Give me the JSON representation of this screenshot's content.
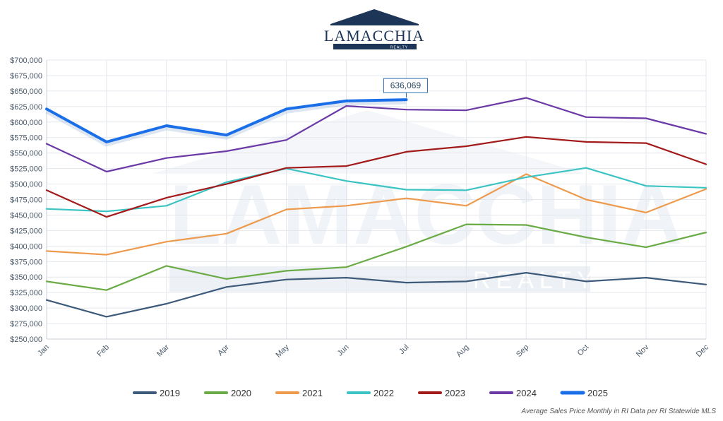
{
  "logo": {
    "name": "LAMACCHIA",
    "sub": "REALTY"
  },
  "watermark": {
    "name": "LAMACCHIA",
    "sub": "REALTY"
  },
  "source_note": "Average Sales Price Monthly in RI Data per RI Statewide MLS",
  "callout": {
    "label": "636,069",
    "series": "2025",
    "month": "Jul"
  },
  "colors": {
    "2019": "#3d5a7a",
    "2020": "#6aab45",
    "2021": "#ee9a4d",
    "2022": "#3cc4c4",
    "2023": "#a31a1a",
    "2024": "#6b3aa6",
    "2025": "#1a6fe8"
  },
  "chart_data": {
    "type": "line",
    "title": "",
    "xlabel": "",
    "ylabel": "",
    "categories": [
      "Jan",
      "Feb",
      "Mar",
      "Apr",
      "May",
      "Jun",
      "Jul",
      "Aug",
      "Sep",
      "Oct",
      "Nov",
      "Dec"
    ],
    "ylim": [
      250000,
      700000
    ],
    "yticks": [
      "$250,000",
      "$275,000",
      "$300,000",
      "$325,000",
      "$350,000",
      "$375,000",
      "$400,000",
      "$425,000",
      "$450,000",
      "$475,000",
      "$500,000",
      "$525,000",
      "$550,000",
      "$575,000",
      "$600,000",
      "$625,000",
      "$650,000",
      "$675,000",
      "$700,000"
    ],
    "ytick_values": [
      250000,
      275000,
      300000,
      325000,
      350000,
      375000,
      400000,
      425000,
      450000,
      475000,
      500000,
      525000,
      550000,
      575000,
      600000,
      625000,
      650000,
      675000,
      700000
    ],
    "grid": true,
    "legend_position": "bottom",
    "series": [
      {
        "name": "2019",
        "values": [
          313000,
          286000,
          307000,
          334000,
          346000,
          349000,
          341000,
          343000,
          357000,
          343000,
          349000,
          338000
        ]
      },
      {
        "name": "2020",
        "values": [
          343000,
          329000,
          368000,
          347000,
          360000,
          366000,
          399000,
          435000,
          434000,
          414000,
          398000,
          422000
        ]
      },
      {
        "name": "2021",
        "values": [
          392000,
          386000,
          407000,
          420000,
          459000,
          465000,
          477000,
          465000,
          516000,
          475000,
          454000,
          492000
        ]
      },
      {
        "name": "2022",
        "values": [
          460000,
          456000,
          465000,
          503000,
          525000,
          505000,
          491000,
          490000,
          511000,
          526000,
          497000,
          494000
        ]
      },
      {
        "name": "2023",
        "values": [
          490000,
          447000,
          478000,
          500000,
          526000,
          529000,
          552000,
          561000,
          576000,
          568000,
          566000,
          532000
        ]
      },
      {
        "name": "2024",
        "values": [
          565000,
          520000,
          542000,
          553000,
          571000,
          626000,
          620000,
          619000,
          639000,
          608000,
          606000,
          581000
        ]
      },
      {
        "name": "2025",
        "values": [
          621000,
          568000,
          594000,
          579000,
          621000,
          634000,
          636069,
          null,
          null,
          null,
          null,
          null
        ]
      }
    ]
  }
}
